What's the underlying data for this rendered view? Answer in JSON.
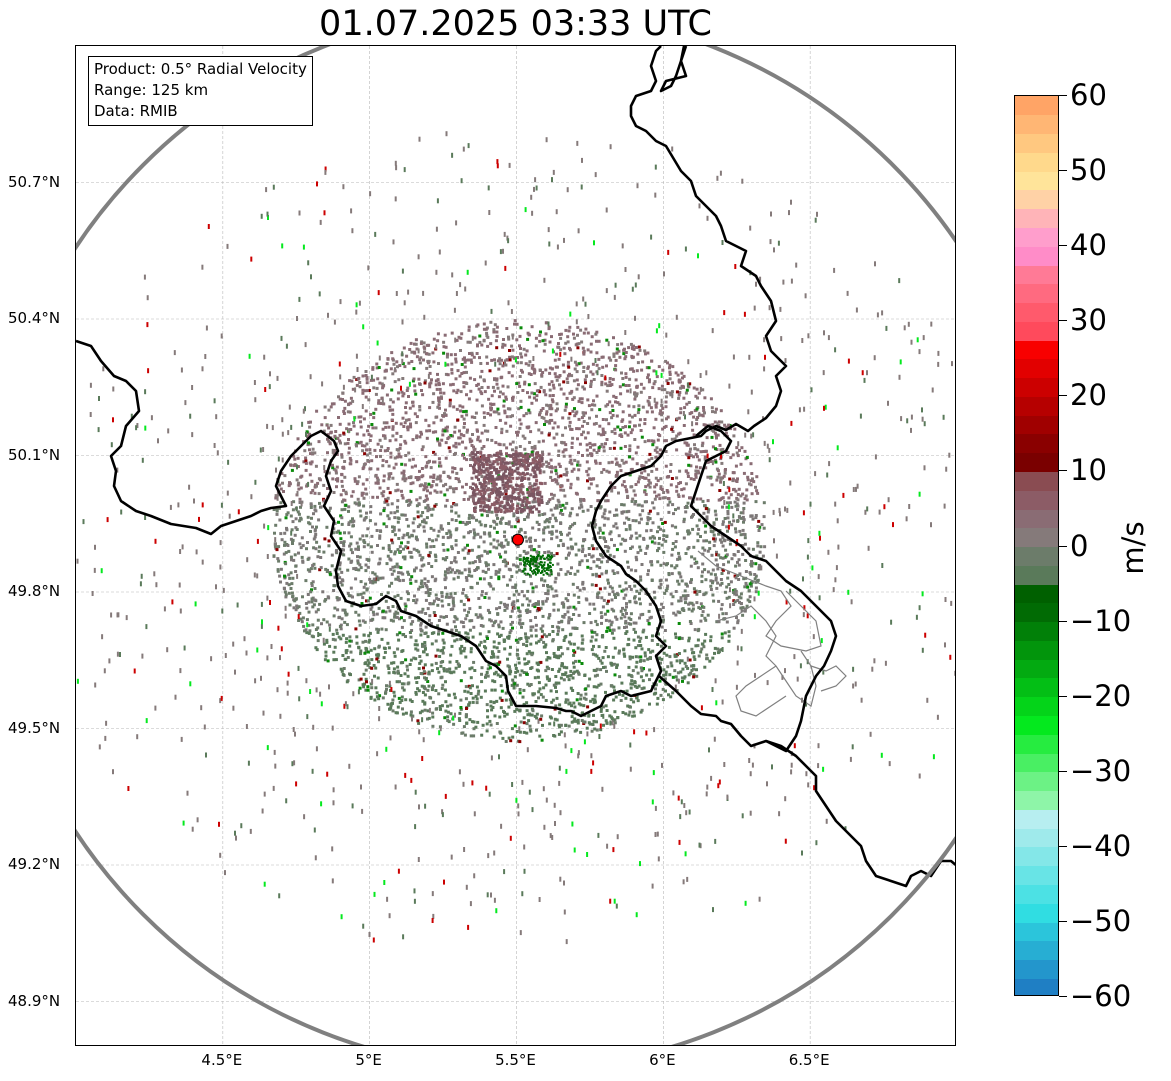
{
  "title": "01.07.2025 03:33 UTC",
  "info_box": {
    "product": "Product: 0.5° Radial Velocity",
    "range": "Range: 125 km",
    "data": "Data: RMIB"
  },
  "map": {
    "lon_range": [
      4.0,
      7.0
    ],
    "lat_range": [
      48.8,
      51.0
    ],
    "lat_ticks": [
      {
        "value": 50.7,
        "label": "50.7°N"
      },
      {
        "value": 50.4,
        "label": "50.4°N"
      },
      {
        "value": 50.1,
        "label": "50.1°N"
      },
      {
        "value": 49.8,
        "label": "49.8°N"
      },
      {
        "value": 49.5,
        "label": "49.5°N"
      },
      {
        "value": 49.2,
        "label": "49.2°N"
      },
      {
        "value": 48.9,
        "label": "48.9°N"
      }
    ],
    "lon_ticks": [
      {
        "value": 4.5,
        "label": "4.5°E"
      },
      {
        "value": 5.0,
        "label": "5°E"
      },
      {
        "value": 5.5,
        "label": "5.5°E"
      },
      {
        "value": 6.0,
        "label": "6°E"
      },
      {
        "value": 6.5,
        "label": "6.5°E"
      }
    ],
    "radar_site": {
      "lon": 5.505,
      "lat": 49.915
    },
    "range_ring_color": "#808080",
    "border_color": "#000000",
    "admin_color": "#808080",
    "site_marker_color": "#ff0000"
  },
  "colorbar": {
    "unit": "m/s",
    "min": -60,
    "max": 60,
    "ticks": [
      {
        "value": 60,
        "label": "60"
      },
      {
        "value": 50,
        "label": "50"
      },
      {
        "value": 40,
        "label": "40"
      },
      {
        "value": 30,
        "label": "30"
      },
      {
        "value": 20,
        "label": "20"
      },
      {
        "value": 10,
        "label": "10"
      },
      {
        "value": 0,
        "label": "0"
      },
      {
        "value": -10,
        "label": "−10"
      },
      {
        "value": -20,
        "label": "−20"
      },
      {
        "value": -30,
        "label": "−30"
      },
      {
        "value": -40,
        "label": "−40"
      },
      {
        "value": -50,
        "label": "−50"
      },
      {
        "value": -60,
        "label": "−60"
      }
    ],
    "colors": [
      "#1f7fc4",
      "#2396cc",
      "#27aed3",
      "#2bc5db",
      "#30dde2",
      "#4ce1e4",
      "#68e4e6",
      "#84e7e8",
      "#9feaeb",
      "#b7eef0",
      "#8ef5a8",
      "#6cf285",
      "#49ef63",
      "#26ec40",
      "#04e91e",
      "#04d419",
      "#03bf15",
      "#03aa11",
      "#02950c",
      "#018008",
      "#016b04",
      "#006000",
      "#5a7a5a",
      "#6c7c6a",
      "#857a7a",
      "#8a6c74",
      "#8c5c66",
      "#8a4c52",
      "#7a0000",
      "#8a0000",
      "#a00000",
      "#b60000",
      "#cc0000",
      "#e20000",
      "#f80000",
      "#ff4a5c",
      "#ff5a6c",
      "#ff6a80",
      "#ff7a96",
      "#ff8cc8",
      "#ff9ecc",
      "#ffb4b8",
      "#ffd2a6",
      "#ffe49a",
      "#ffd98c",
      "#ffc880",
      "#ffb674",
      "#ffa466"
    ]
  }
}
